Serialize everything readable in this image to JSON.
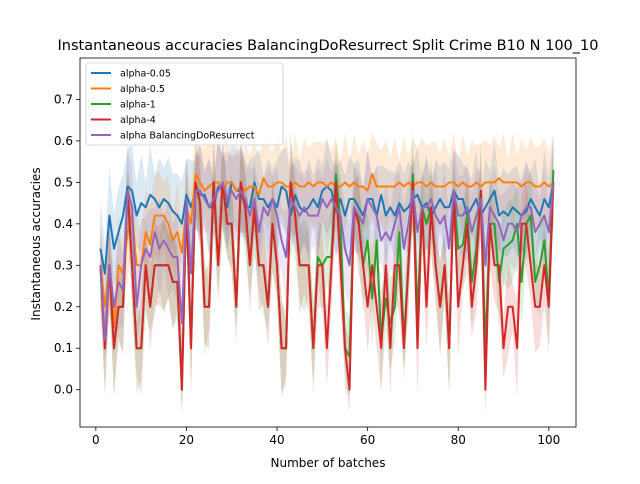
{
  "chart_data": {
    "type": "line",
    "title": "Instantaneous accuracies BalancingDoResurrect Split Crime B10 N 100_10",
    "xlabel": "Number of batches",
    "ylabel": "Instantaneous accuracies",
    "xlim": [
      -3.5,
      106
    ],
    "ylim": [
      -0.09,
      0.8
    ],
    "xticks": [
      0,
      20,
      40,
      60,
      80,
      100
    ],
    "yticks": [
      0.0,
      0.1,
      0.2,
      0.3,
      0.4,
      0.5,
      0.6,
      0.7
    ],
    "ytick_labels": [
      "0.0",
      "0.1",
      "0.2",
      "0.3",
      "0.4",
      "0.5",
      "0.6",
      "0.7"
    ],
    "grid": false,
    "legend_position": "top-left",
    "series": [
      {
        "name": "alpha-0.05",
        "color": "#1f77b4",
        "x": [
          1,
          2,
          3,
          4,
          5,
          6,
          7,
          8,
          9,
          10,
          11,
          12,
          13,
          14,
          15,
          16,
          17,
          18,
          19,
          20,
          21,
          22,
          23,
          24,
          25,
          26,
          27,
          28,
          29,
          30,
          31,
          32,
          33,
          34,
          35,
          36,
          37,
          38,
          39,
          40,
          41,
          42,
          43,
          44,
          45,
          46,
          47,
          48,
          49,
          50,
          51,
          52,
          53,
          54,
          55,
          56,
          57,
          58,
          59,
          60,
          61,
          62,
          63,
          64,
          65,
          66,
          67,
          68,
          69,
          70,
          71,
          72,
          73,
          74,
          75,
          76,
          77,
          78,
          79,
          80,
          81,
          82,
          83,
          84,
          85,
          86,
          87,
          88,
          89,
          90,
          91,
          92,
          93,
          94,
          95,
          96,
          97,
          98,
          99,
          100,
          101
        ],
        "y": [
          0.34,
          0.28,
          0.42,
          0.34,
          0.38,
          0.42,
          0.49,
          0.48,
          0.42,
          0.45,
          0.44,
          0.47,
          0.46,
          0.44,
          0.46,
          0.45,
          0.43,
          0.42,
          0.4,
          0.47,
          0.44,
          0.48,
          0.47,
          0.47,
          0.44,
          0.44,
          0.49,
          0.48,
          0.44,
          0.5,
          0.48,
          0.48,
          0.44,
          0.44,
          0.5,
          0.46,
          0.46,
          0.44,
          0.46,
          0.44,
          0.49,
          0.48,
          0.42,
          0.47,
          0.44,
          0.43,
          0.44,
          0.46,
          0.44,
          0.48,
          0.49,
          0.48,
          0.43,
          0.46,
          0.42,
          0.46,
          0.46,
          0.44,
          0.42,
          0.46,
          0.46,
          0.42,
          0.47,
          0.42,
          0.44,
          0.42,
          0.45,
          0.43,
          0.44,
          0.46,
          0.47,
          0.44,
          0.45,
          0.42,
          0.44,
          0.46,
          0.44,
          0.44,
          0.48,
          0.46,
          0.46,
          0.42,
          0.44,
          0.46,
          0.42,
          0.44,
          0.46,
          0.48,
          0.42,
          0.43,
          0.42,
          0.44,
          0.43,
          0.42,
          0.43,
          0.46,
          0.44,
          0.42,
          0.46,
          0.44,
          0.5
        ]
      },
      {
        "name": "alpha-0.5",
        "color": "#ff7f0e",
        "x": [
          1,
          2,
          3,
          4,
          5,
          6,
          7,
          8,
          9,
          10,
          11,
          12,
          13,
          14,
          15,
          16,
          17,
          18,
          19,
          20,
          21,
          22,
          23,
          24,
          25,
          26,
          27,
          28,
          29,
          30,
          31,
          32,
          33,
          34,
          35,
          36,
          37,
          38,
          39,
          40,
          41,
          42,
          43,
          44,
          45,
          46,
          47,
          48,
          49,
          50,
          51,
          52,
          53,
          54,
          55,
          56,
          57,
          58,
          59,
          60,
          61,
          62,
          63,
          64,
          65,
          66,
          67,
          68,
          69,
          70,
          71,
          72,
          73,
          74,
          75,
          76,
          77,
          78,
          79,
          80,
          81,
          82,
          83,
          84,
          85,
          86,
          87,
          88,
          89,
          90,
          91,
          92,
          93,
          94,
          95,
          96,
          97,
          98,
          99,
          100,
          101
        ],
        "y": [
          0.3,
          0.2,
          0.3,
          0.15,
          0.3,
          0.28,
          0.38,
          0.42,
          0.3,
          0.3,
          0.38,
          0.35,
          0.42,
          0.42,
          0.42,
          0.4,
          0.36,
          0.38,
          0.33,
          0.44,
          0.4,
          0.52,
          0.5,
          0.48,
          0.49,
          0.5,
          0.5,
          0.48,
          0.5,
          0.5,
          0.48,
          0.49,
          0.48,
          0.49,
          0.49,
          0.47,
          0.51,
          0.49,
          0.49,
          0.5,
          0.5,
          0.49,
          0.49,
          0.5,
          0.49,
          0.49,
          0.5,
          0.49,
          0.5,
          0.5,
          0.49,
          0.5,
          0.49,
          0.49,
          0.5,
          0.49,
          0.5,
          0.49,
          0.49,
          0.48,
          0.52,
          0.49,
          0.49,
          0.49,
          0.49,
          0.49,
          0.5,
          0.49,
          0.5,
          0.49,
          0.5,
          0.5,
          0.49,
          0.5,
          0.49,
          0.49,
          0.49,
          0.5,
          0.5,
          0.49,
          0.5,
          0.49,
          0.49,
          0.5,
          0.49,
          0.5,
          0.5,
          0.5,
          0.51,
          0.5,
          0.5,
          0.5,
          0.5,
          0.49,
          0.5,
          0.5,
          0.49,
          0.49,
          0.5,
          0.49,
          0.5
        ]
      },
      {
        "name": "alpha-1",
        "color": "#2ca02c",
        "x": [
          1,
          2,
          3,
          4,
          5,
          6,
          7,
          8,
          9,
          10,
          11,
          12,
          13,
          14,
          15,
          16,
          17,
          18,
          19,
          20,
          21,
          22,
          23,
          24,
          25,
          26,
          27,
          28,
          29,
          30,
          31,
          32,
          33,
          34,
          35,
          36,
          37,
          38,
          39,
          40,
          41,
          42,
          43,
          44,
          45,
          46,
          47,
          48,
          49,
          50,
          51,
          52,
          53,
          54,
          55,
          56,
          57,
          58,
          59,
          60,
          61,
          62,
          63,
          64,
          65,
          66,
          67,
          68,
          69,
          70,
          71,
          72,
          73,
          74,
          75,
          76,
          77,
          78,
          79,
          80,
          81,
          82,
          83,
          84,
          85,
          86,
          87,
          88,
          89,
          90,
          91,
          92,
          93,
          94,
          95,
          96,
          97,
          98,
          99,
          100,
          101
        ],
        "y": [
          0.3,
          0.1,
          0.3,
          0.1,
          0.2,
          0.2,
          0.48,
          0.3,
          0.1,
          0.1,
          0.3,
          0.2,
          0.3,
          0.3,
          0.3,
          0.3,
          0.26,
          0.26,
          0.0,
          0.46,
          0.1,
          0.5,
          0.45,
          0.2,
          0.2,
          0.5,
          0.3,
          0.5,
          0.4,
          0.4,
          0.2,
          0.5,
          0.44,
          0.3,
          0.44,
          0.3,
          0.3,
          0.2,
          0.4,
          0.3,
          0.1,
          0.1,
          0.5,
          0.42,
          0.3,
          0.3,
          0.3,
          0.1,
          0.32,
          0.3,
          0.32,
          0.32,
          0.52,
          0.4,
          0.1,
          0.08,
          0.44,
          0.41,
          0.3,
          0.36,
          0.22,
          0.36,
          0.12,
          0.22,
          0.16,
          0.2,
          0.38,
          0.12,
          0.3,
          0.52,
          0.18,
          0.44,
          0.4,
          0.44,
          0.3,
          0.2,
          0.3,
          0.1,
          0.48,
          0.34,
          0.35,
          0.42,
          0.26,
          0.34,
          0.48,
          0.1,
          0.4,
          0.4,
          0.26,
          0.34,
          0.35,
          0.36,
          0.4,
          0.26,
          0.4,
          0.42,
          0.26,
          0.3,
          0.36,
          0.22,
          0.53
        ]
      },
      {
        "name": "alpha-4",
        "color": "#d62728",
        "x": [
          1,
          2,
          3,
          4,
          5,
          6,
          7,
          8,
          9,
          10,
          11,
          12,
          13,
          14,
          15,
          16,
          17,
          18,
          19,
          20,
          21,
          22,
          23,
          24,
          25,
          26,
          27,
          28,
          29,
          30,
          31,
          32,
          33,
          34,
          35,
          36,
          37,
          38,
          39,
          40,
          41,
          42,
          43,
          44,
          45,
          46,
          47,
          48,
          49,
          50,
          51,
          52,
          53,
          54,
          55,
          56,
          57,
          58,
          59,
          60,
          61,
          62,
          63,
          64,
          65,
          66,
          67,
          68,
          69,
          70,
          71,
          72,
          73,
          74,
          75,
          76,
          77,
          78,
          79,
          80,
          81,
          82,
          83,
          84,
          85,
          86,
          87,
          88,
          89,
          90,
          91,
          92,
          93,
          94,
          95,
          96,
          97,
          98,
          99,
          100,
          101
        ],
        "y": [
          0.3,
          0.1,
          0.3,
          0.1,
          0.2,
          0.2,
          0.48,
          0.3,
          0.1,
          0.1,
          0.3,
          0.2,
          0.3,
          0.3,
          0.3,
          0.3,
          0.26,
          0.26,
          0.0,
          0.46,
          0.1,
          0.5,
          0.45,
          0.2,
          0.2,
          0.5,
          0.3,
          0.5,
          0.4,
          0.4,
          0.2,
          0.5,
          0.44,
          0.3,
          0.44,
          0.3,
          0.3,
          0.2,
          0.4,
          0.3,
          0.1,
          0.1,
          0.5,
          0.42,
          0.3,
          0.3,
          0.3,
          0.1,
          0.3,
          0.3,
          0.1,
          0.3,
          0.5,
          0.3,
          0.1,
          0.0,
          0.44,
          0.4,
          0.3,
          0.2,
          0.3,
          0.2,
          0.1,
          0.3,
          0.1,
          0.3,
          0.3,
          0.1,
          0.3,
          0.5,
          0.1,
          0.44,
          0.2,
          0.44,
          0.3,
          0.2,
          0.3,
          0.1,
          0.48,
          0.2,
          0.3,
          0.4,
          0.2,
          0.3,
          0.48,
          0.0,
          0.4,
          0.3,
          0.3,
          0.1,
          0.2,
          0.2,
          0.1,
          0.4,
          0.4,
          0.3,
          0.2,
          0.2,
          0.3,
          0.2,
          0.5
        ]
      },
      {
        "name": "alpha BalancingDoResurrect",
        "color": "#9467bd",
        "x": [
          1,
          2,
          3,
          4,
          5,
          6,
          7,
          8,
          9,
          10,
          11,
          12,
          13,
          14,
          15,
          16,
          17,
          18,
          19,
          20,
          21,
          22,
          23,
          24,
          25,
          26,
          27,
          28,
          29,
          30,
          31,
          32,
          33,
          34,
          35,
          36,
          37,
          38,
          39,
          40,
          41,
          42,
          43,
          44,
          45,
          46,
          47,
          48,
          49,
          50,
          51,
          52,
          53,
          54,
          55,
          56,
          57,
          58,
          59,
          60,
          61,
          62,
          63,
          64,
          65,
          66,
          67,
          68,
          69,
          70,
          71,
          72,
          73,
          74,
          75,
          76,
          77,
          78,
          79,
          80,
          81,
          82,
          83,
          84,
          85,
          86,
          87,
          88,
          89,
          90,
          91,
          92,
          93,
          94,
          95,
          96,
          97,
          98,
          99,
          100,
          101
        ],
        "y": [
          0.3,
          0.12,
          0.3,
          0.2,
          0.26,
          0.24,
          0.48,
          0.44,
          0.2,
          0.3,
          0.34,
          0.32,
          0.38,
          0.34,
          0.36,
          0.34,
          0.32,
          0.32,
          0.16,
          0.46,
          0.28,
          0.48,
          0.48,
          0.46,
          0.44,
          0.46,
          0.48,
          0.5,
          0.46,
          0.48,
          0.46,
          0.48,
          0.46,
          0.42,
          0.46,
          0.38,
          0.44,
          0.42,
          0.46,
          0.42,
          0.36,
          0.32,
          0.46,
          0.44,
          0.42,
          0.44,
          0.42,
          0.42,
          0.42,
          0.46,
          0.44,
          0.46,
          0.44,
          0.42,
          0.34,
          0.3,
          0.44,
          0.42,
          0.4,
          0.46,
          0.44,
          0.42,
          0.36,
          0.38,
          0.36,
          0.4,
          0.44,
          0.34,
          0.4,
          0.48,
          0.38,
          0.44,
          0.44,
          0.46,
          0.42,
          0.4,
          0.42,
          0.34,
          0.48,
          0.42,
          0.42,
          0.44,
          0.38,
          0.42,
          0.46,
          0.3,
          0.44,
          0.42,
          0.4,
          0.36,
          0.4,
          0.4,
          0.38,
          0.42,
          0.44,
          0.44,
          0.38,
          0.4,
          0.42,
          0.38,
          0.5
        ]
      }
    ]
  }
}
